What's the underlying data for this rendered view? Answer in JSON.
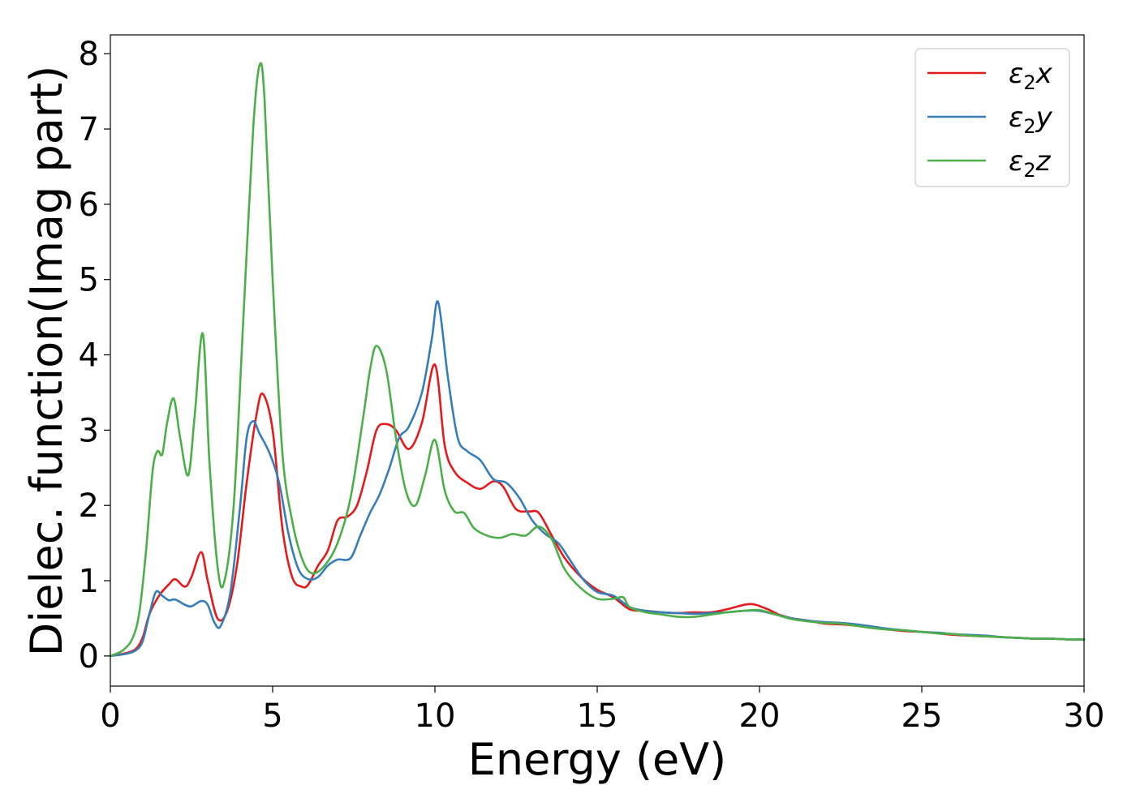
{
  "chart_data": {
    "type": "line",
    "xlabel": "Energy (eV)",
    "ylabel": "Dielec. function(Imag part)",
    "xlim": [
      0,
      30
    ],
    "ylim": [
      -0.4,
      8.25
    ],
    "xticks": [
      0,
      5,
      10,
      15,
      20,
      25,
      30
    ],
    "yticks": [
      0,
      1,
      2,
      3,
      4,
      5,
      6,
      7,
      8
    ],
    "grid": false,
    "legend": "top-right",
    "series": [
      {
        "name": "ε₂x",
        "label_base": "ε",
        "label_sub": "2",
        "label_var": "x",
        "color": "#e41a1c",
        "x": [
          0,
          0.5,
          0.8,
          1.0,
          1.2,
          1.5,
          1.8,
          2.0,
          2.3,
          2.5,
          2.8,
          3.0,
          3.3,
          3.6,
          3.9,
          4.2,
          4.5,
          4.7,
          5.0,
          5.3,
          5.6,
          5.9,
          6.1,
          6.4,
          6.7,
          7.0,
          7.3,
          7.6,
          7.9,
          8.2,
          8.5,
          8.8,
          9.2,
          9.6,
          10.0,
          10.3,
          10.6,
          11.0,
          11.4,
          11.8,
          12.1,
          12.5,
          12.9,
          13.2,
          13.6,
          14.0,
          14.5,
          15.0,
          15.5,
          16.0,
          16.5,
          17.0,
          17.5,
          18.0,
          18.5,
          19.0,
          19.7,
          20.2,
          20.6,
          21.0,
          21.5,
          22.0,
          22.5,
          23.0,
          23.5,
          24.0,
          24.5,
          25.0,
          25.5,
          26.0,
          26.5,
          27.0,
          27.5,
          28.0,
          28.5,
          29.0,
          29.5,
          30.0
        ],
        "y": [
          0.0,
          0.04,
          0.1,
          0.25,
          0.55,
          0.8,
          0.95,
          1.02,
          0.92,
          1.05,
          1.38,
          1.0,
          0.5,
          0.6,
          1.2,
          2.3,
          3.2,
          3.48,
          3.0,
          1.7,
          1.05,
          0.92,
          0.95,
          1.2,
          1.4,
          1.8,
          1.85,
          2.0,
          2.45,
          3.0,
          3.08,
          3.0,
          2.75,
          3.1,
          3.87,
          2.8,
          2.45,
          2.3,
          2.22,
          2.32,
          2.25,
          1.95,
          1.92,
          1.9,
          1.6,
          1.3,
          1.05,
          0.88,
          0.78,
          0.62,
          0.6,
          0.58,
          0.57,
          0.58,
          0.58,
          0.62,
          0.69,
          0.63,
          0.55,
          0.5,
          0.47,
          0.43,
          0.42,
          0.4,
          0.37,
          0.35,
          0.33,
          0.32,
          0.3,
          0.28,
          0.27,
          0.26,
          0.25,
          0.24,
          0.23,
          0.23,
          0.22,
          0.22
        ]
      },
      {
        "name": "ε₂y",
        "label_base": "ε",
        "label_sub": "2",
        "label_var": "y",
        "color": "#377eb8",
        "x": [
          0,
          0.5,
          0.8,
          1.0,
          1.2,
          1.4,
          1.6,
          1.8,
          2.0,
          2.3,
          2.5,
          2.8,
          3.0,
          3.2,
          3.4,
          3.7,
          4.0,
          4.2,
          4.4,
          4.6,
          4.9,
          5.2,
          5.5,
          5.8,
          6.1,
          6.4,
          6.7,
          7.0,
          7.4,
          7.7,
          8.0,
          8.3,
          8.6,
          8.9,
          9.2,
          9.6,
          9.9,
          10.1,
          10.4,
          10.7,
          11.0,
          11.4,
          11.8,
          12.2,
          12.6,
          13.0,
          13.4,
          13.8,
          14.2,
          14.6,
          15.0,
          15.5,
          16.0,
          16.5,
          17.0,
          17.5,
          18.0,
          18.5,
          19.0,
          19.5,
          20.0,
          20.5,
          21.0,
          21.5,
          22.0,
          22.5,
          23.0,
          23.5,
          24.0,
          24.5,
          25.0,
          25.5,
          26.0,
          26.5,
          27.0,
          27.5,
          28.0,
          28.5,
          29.0,
          29.5,
          30.0
        ],
        "y": [
          0.0,
          0.03,
          0.08,
          0.2,
          0.55,
          0.85,
          0.8,
          0.74,
          0.75,
          0.68,
          0.66,
          0.73,
          0.68,
          0.45,
          0.4,
          0.85,
          2.0,
          2.9,
          3.12,
          2.95,
          2.7,
          2.3,
          1.6,
          1.15,
          1.02,
          1.05,
          1.2,
          1.28,
          1.3,
          1.6,
          1.9,
          2.15,
          2.5,
          2.9,
          3.05,
          3.5,
          4.2,
          4.7,
          3.7,
          2.9,
          2.72,
          2.6,
          2.35,
          2.3,
          2.1,
          1.8,
          1.62,
          1.5,
          1.25,
          1.0,
          0.85,
          0.8,
          0.65,
          0.6,
          0.58,
          0.57,
          0.56,
          0.57,
          0.58,
          0.6,
          0.6,
          0.55,
          0.5,
          0.47,
          0.45,
          0.44,
          0.42,
          0.39,
          0.36,
          0.34,
          0.32,
          0.31,
          0.29,
          0.28,
          0.27,
          0.25,
          0.24,
          0.23,
          0.23,
          0.22,
          0.22
        ]
      },
      {
        "name": "ε₂z",
        "label_base": "ε",
        "label_sub": "2",
        "label_var": "z",
        "color": "#4daf4a",
        "x": [
          0,
          0.4,
          0.7,
          0.9,
          1.1,
          1.3,
          1.45,
          1.6,
          1.75,
          1.95,
          2.15,
          2.4,
          2.6,
          2.85,
          3.05,
          3.3,
          3.5,
          3.8,
          4.1,
          4.4,
          4.6,
          4.75,
          5.0,
          5.3,
          5.6,
          5.9,
          6.2,
          6.6,
          7.0,
          7.4,
          7.8,
          8.0,
          8.2,
          8.5,
          8.8,
          9.1,
          9.4,
          9.7,
          10.0,
          10.3,
          10.6,
          10.9,
          11.2,
          11.6,
          12.0,
          12.4,
          12.8,
          13.2,
          13.6,
          14.0,
          14.5,
          15.0,
          15.5,
          15.8,
          16.0,
          16.5,
          17.0,
          17.5,
          18.0,
          18.5,
          19.0,
          19.5,
          20.0,
          20.5,
          21.0,
          21.5,
          22.0,
          22.5,
          23.0,
          23.5,
          24.0,
          24.5,
          25.0,
          25.5,
          26.0,
          26.5,
          27.0,
          27.5,
          28.0,
          28.5,
          29.0,
          29.5,
          30.0
        ],
        "y": [
          0.0,
          0.08,
          0.25,
          0.6,
          1.4,
          2.45,
          2.72,
          2.68,
          3.1,
          3.42,
          2.9,
          2.4,
          3.2,
          4.28,
          2.6,
          1.2,
          0.97,
          2.0,
          4.5,
          7.0,
          7.85,
          7.4,
          5.0,
          2.7,
          1.8,
          1.3,
          1.1,
          1.2,
          1.5,
          2.1,
          3.2,
          3.8,
          4.12,
          3.8,
          2.9,
          2.2,
          2.0,
          2.4,
          2.87,
          2.2,
          1.92,
          1.9,
          1.7,
          1.6,
          1.57,
          1.62,
          1.6,
          1.72,
          1.55,
          1.15,
          0.9,
          0.76,
          0.76,
          0.78,
          0.65,
          0.58,
          0.55,
          0.52,
          0.52,
          0.55,
          0.58,
          0.6,
          0.61,
          0.55,
          0.49,
          0.46,
          0.44,
          0.43,
          0.4,
          0.37,
          0.35,
          0.34,
          0.32,
          0.3,
          0.29,
          0.27,
          0.26,
          0.25,
          0.24,
          0.23,
          0.23,
          0.22,
          0.22
        ]
      }
    ]
  }
}
